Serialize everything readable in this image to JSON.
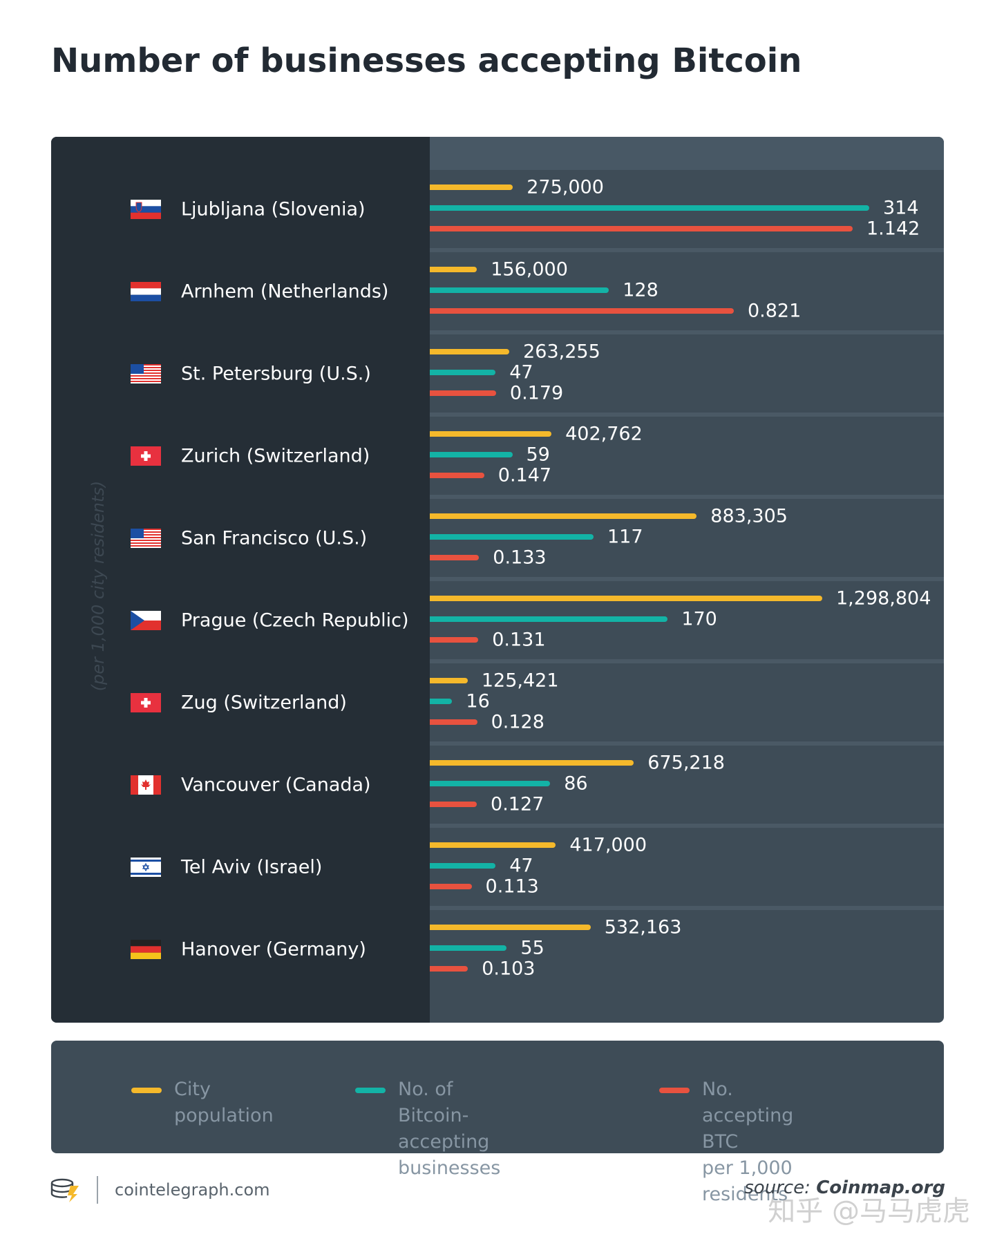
{
  "title": "Number of businesses accepting Bitcoin",
  "axis_note": "(per 1,000 city residents)",
  "colors": {
    "population": "#f5b92b",
    "businesses": "#13b3a6",
    "per1000": "#e8523f"
  },
  "chart_data": {
    "type": "bar",
    "orientation": "horizontal",
    "title": "Number of businesses accepting Bitcoin",
    "categories": [
      "Ljubljana (Slovenia)",
      "Arnhem (Netherlands)",
      "St. Petersburg (U.S.)",
      "Zurich (Switzerland)",
      "San Francisco (U.S.)",
      "Prague (Czech Republic)",
      "Zug (Switzerland)",
      "Vancouver (Canada)",
      "Tel Aviv (Israel)",
      "Hanover (Germany)"
    ],
    "flags": [
      "slovenia",
      "netherlands",
      "usa",
      "switzerland",
      "usa",
      "czech",
      "switzerland",
      "canada",
      "israel",
      "germany"
    ],
    "series": [
      {
        "name": "City population",
        "color": "#f5b92b",
        "values": [
          275000,
          156000,
          263255,
          402762,
          883305,
          1298804,
          125421,
          675218,
          417000,
          532163
        ],
        "labels": [
          "275,000",
          "156,000",
          "263,255",
          "402,762",
          "883,305",
          "1,298,804",
          "125,421",
          "675,218",
          "417,000",
          "532,163"
        ]
      },
      {
        "name": "No. of Bitcoin-accepting businesses",
        "color": "#13b3a6",
        "values": [
          314,
          128,
          47,
          59,
          117,
          170,
          16,
          86,
          47,
          55
        ],
        "labels": [
          "314",
          "128",
          "47",
          "59",
          "117",
          "170",
          "16",
          "86",
          "47",
          "55"
        ]
      },
      {
        "name": "No. accepting BTC per 1,000 residents",
        "color": "#e8523f",
        "values": [
          1.142,
          0.821,
          0.179,
          0.147,
          0.133,
          0.131,
          0.128,
          0.127,
          0.113,
          0.103
        ],
        "labels": [
          "1.142",
          "0.821",
          "0.179",
          "0.147",
          "0.133",
          "0.131",
          "0.128",
          "0.127",
          "0.113",
          "0.103"
        ]
      }
    ],
    "legend_position": "bottom"
  },
  "legend": [
    {
      "label": "City population",
      "color": "#f5b92b"
    },
    {
      "label": "No. of Bitcoin-accepting\nbusinesses",
      "color": "#13b3a6"
    },
    {
      "label": "No. accepting BTC\nper 1,000 residents",
      "color": "#e8523f"
    }
  ],
  "footer": {
    "site": "cointelegraph.com",
    "source_label": "source: ",
    "source_name": "Coinmap.org"
  },
  "watermark": "知乎 @马马虎虎"
}
